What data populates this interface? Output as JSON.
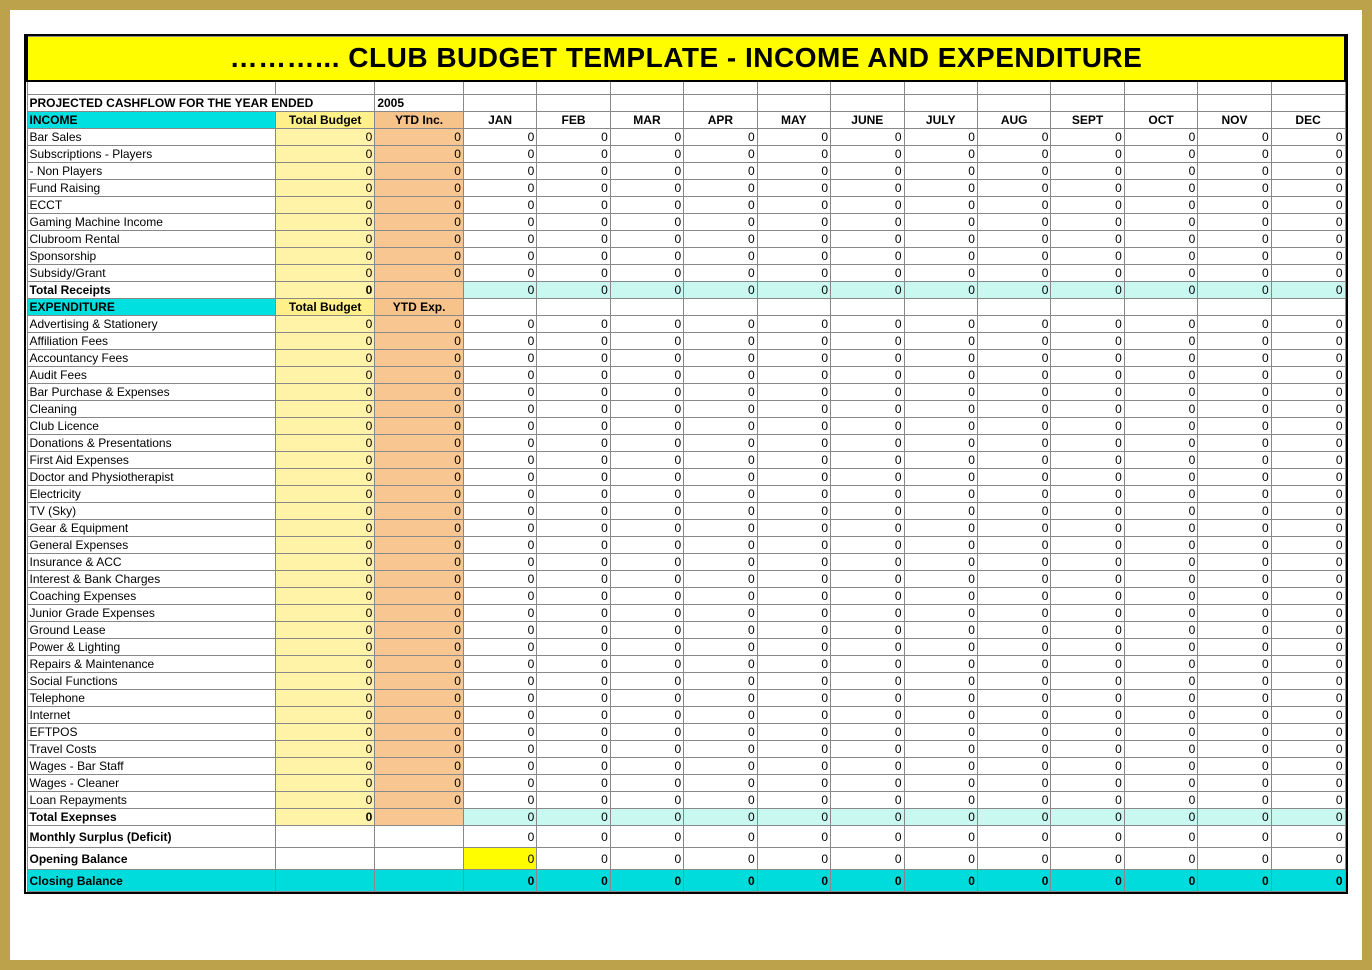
{
  "title": "………...  CLUB BUDGET TEMPLATE - INCOME AND EXPENDITURE",
  "projected_label": "PROJECTED CASHFLOW FOR THE YEAR ENDED",
  "projected_year": "2005",
  "headers": {
    "income": "INCOME",
    "expenditure": "EXPENDITURE",
    "total_budget": "Total Budget",
    "ytd_inc": "YTD Inc.",
    "ytd_exp": "YTD Exp.",
    "months": [
      "JAN",
      "FEB",
      "MAR",
      "APR",
      "MAY",
      "JUNE",
      "JULY",
      "AUG",
      "SEPT",
      "OCT",
      "NOV",
      "DEC"
    ]
  },
  "colors": {
    "outer_border": "#bca24a",
    "title_bg": "#fffd00",
    "section_bg": "#00e0e0",
    "tb_bg": "#fff3a8",
    "tb_hdr_bg": "#fff08a",
    "ytd_bg": "#f8c690",
    "ytd_hdr_bg": "#f6c38a",
    "total_month_bg": "#c8f8f0",
    "closing_bg": "#00dcdc",
    "opening_jan_bg": "#fffd00",
    "grid": "#888888",
    "strong_border": "#000000"
  },
  "income_rows": [
    {
      "label": "Bar Sales",
      "tb": 0,
      "ytd": 0,
      "m": [
        0,
        0,
        0,
        0,
        0,
        0,
        0,
        0,
        0,
        0,
        0,
        0
      ]
    },
    {
      "label": "Subscriptions - Players",
      "tb": 0,
      "ytd": 0,
      "m": [
        0,
        0,
        0,
        0,
        0,
        0,
        0,
        0,
        0,
        0,
        0,
        0
      ]
    },
    {
      "label": "                - Non Players",
      "tb": 0,
      "ytd": 0,
      "m": [
        0,
        0,
        0,
        0,
        0,
        0,
        0,
        0,
        0,
        0,
        0,
        0
      ]
    },
    {
      "label": "Fund Raising",
      "tb": 0,
      "ytd": 0,
      "m": [
        0,
        0,
        0,
        0,
        0,
        0,
        0,
        0,
        0,
        0,
        0,
        0
      ]
    },
    {
      "label": "ECCT",
      "tb": 0,
      "ytd": 0,
      "m": [
        0,
        0,
        0,
        0,
        0,
        0,
        0,
        0,
        0,
        0,
        0,
        0
      ]
    },
    {
      "label": "Gaming Machine Income",
      "tb": 0,
      "ytd": 0,
      "m": [
        0,
        0,
        0,
        0,
        0,
        0,
        0,
        0,
        0,
        0,
        0,
        0
      ]
    },
    {
      "label": "Clubroom Rental",
      "tb": 0,
      "ytd": 0,
      "m": [
        0,
        0,
        0,
        0,
        0,
        0,
        0,
        0,
        0,
        0,
        0,
        0
      ]
    },
    {
      "label": "Sponsorship",
      "tb": 0,
      "ytd": 0,
      "m": [
        0,
        0,
        0,
        0,
        0,
        0,
        0,
        0,
        0,
        0,
        0,
        0
      ]
    },
    {
      "label": "Subsidy/Grant",
      "tb": 0,
      "ytd": 0,
      "m": [
        0,
        0,
        0,
        0,
        0,
        0,
        0,
        0,
        0,
        0,
        0,
        0
      ]
    }
  ],
  "income_total": {
    "label": "Total Receipts",
    "tb": 0,
    "ytd": "",
    "m": [
      0,
      0,
      0,
      0,
      0,
      0,
      0,
      0,
      0,
      0,
      0,
      0
    ]
  },
  "expenditure_rows": [
    {
      "label": "Advertising & Stationery",
      "tb": 0,
      "ytd": 0,
      "m": [
        0,
        0,
        0,
        0,
        0,
        0,
        0,
        0,
        0,
        0,
        0,
        0
      ]
    },
    {
      "label": "Affiliation Fees",
      "tb": 0,
      "ytd": 0,
      "m": [
        0,
        0,
        0,
        0,
        0,
        0,
        0,
        0,
        0,
        0,
        0,
        0
      ]
    },
    {
      "label": "Accountancy Fees",
      "tb": 0,
      "ytd": 0,
      "m": [
        0,
        0,
        0,
        0,
        0,
        0,
        0,
        0,
        0,
        0,
        0,
        0
      ]
    },
    {
      "label": "Audit Fees",
      "tb": 0,
      "ytd": 0,
      "m": [
        0,
        0,
        0,
        0,
        0,
        0,
        0,
        0,
        0,
        0,
        0,
        0
      ]
    },
    {
      "label": "Bar Purchase & Expenses",
      "tb": 0,
      "ytd": 0,
      "m": [
        0,
        0,
        0,
        0,
        0,
        0,
        0,
        0,
        0,
        0,
        0,
        0
      ]
    },
    {
      "label": "Cleaning",
      "tb": 0,
      "ytd": 0,
      "m": [
        0,
        0,
        0,
        0,
        0,
        0,
        0,
        0,
        0,
        0,
        0,
        0
      ]
    },
    {
      "label": "Club Licence",
      "tb": 0,
      "ytd": 0,
      "m": [
        0,
        0,
        0,
        0,
        0,
        0,
        0,
        0,
        0,
        0,
        0,
        0
      ]
    },
    {
      "label": "Donations & Presentations",
      "tb": 0,
      "ytd": 0,
      "m": [
        0,
        0,
        0,
        0,
        0,
        0,
        0,
        0,
        0,
        0,
        0,
        0
      ]
    },
    {
      "label": "First Aid Expenses",
      "tb": 0,
      "ytd": 0,
      "m": [
        0,
        0,
        0,
        0,
        0,
        0,
        0,
        0,
        0,
        0,
        0,
        0
      ]
    },
    {
      "label": "Doctor and Physiotherapist",
      "tb": 0,
      "ytd": 0,
      "m": [
        0,
        0,
        0,
        0,
        0,
        0,
        0,
        0,
        0,
        0,
        0,
        0
      ]
    },
    {
      "label": "Electricity",
      "tb": 0,
      "ytd": 0,
      "m": [
        0,
        0,
        0,
        0,
        0,
        0,
        0,
        0,
        0,
        0,
        0,
        0
      ]
    },
    {
      "label": "TV (Sky)",
      "tb": 0,
      "ytd": 0,
      "m": [
        0,
        0,
        0,
        0,
        0,
        0,
        0,
        0,
        0,
        0,
        0,
        0
      ]
    },
    {
      "label": "Gear & Equipment",
      "tb": 0,
      "ytd": 0,
      "m": [
        0,
        0,
        0,
        0,
        0,
        0,
        0,
        0,
        0,
        0,
        0,
        0
      ]
    },
    {
      "label": "General Expenses",
      "tb": 0,
      "ytd": 0,
      "m": [
        0,
        0,
        0,
        0,
        0,
        0,
        0,
        0,
        0,
        0,
        0,
        0
      ]
    },
    {
      "label": "Insurance & ACC",
      "tb": 0,
      "ytd": 0,
      "m": [
        0,
        0,
        0,
        0,
        0,
        0,
        0,
        0,
        0,
        0,
        0,
        0
      ]
    },
    {
      "label": "Interest & Bank Charges",
      "tb": 0,
      "ytd": 0,
      "m": [
        0,
        0,
        0,
        0,
        0,
        0,
        0,
        0,
        0,
        0,
        0,
        0
      ]
    },
    {
      "label": "Coaching Expenses",
      "tb": 0,
      "ytd": 0,
      "m": [
        0,
        0,
        0,
        0,
        0,
        0,
        0,
        0,
        0,
        0,
        0,
        0
      ]
    },
    {
      "label": "Junior Grade Expenses",
      "tb": 0,
      "ytd": 0,
      "m": [
        0,
        0,
        0,
        0,
        0,
        0,
        0,
        0,
        0,
        0,
        0,
        0
      ]
    },
    {
      "label": "Ground Lease",
      "tb": 0,
      "ytd": 0,
      "m": [
        0,
        0,
        0,
        0,
        0,
        0,
        0,
        0,
        0,
        0,
        0,
        0
      ]
    },
    {
      "label": "Power & Lighting",
      "tb": 0,
      "ytd": 0,
      "m": [
        0,
        0,
        0,
        0,
        0,
        0,
        0,
        0,
        0,
        0,
        0,
        0
      ]
    },
    {
      "label": "Repairs & Maintenance",
      "tb": 0,
      "ytd": 0,
      "m": [
        0,
        0,
        0,
        0,
        0,
        0,
        0,
        0,
        0,
        0,
        0,
        0
      ]
    },
    {
      "label": "Social Functions",
      "tb": 0,
      "ytd": 0,
      "m": [
        0,
        0,
        0,
        0,
        0,
        0,
        0,
        0,
        0,
        0,
        0,
        0
      ]
    },
    {
      "label": "Telephone",
      "tb": 0,
      "ytd": 0,
      "m": [
        0,
        0,
        0,
        0,
        0,
        0,
        0,
        0,
        0,
        0,
        0,
        0
      ]
    },
    {
      "label": "Internet",
      "tb": 0,
      "ytd": 0,
      "m": [
        0,
        0,
        0,
        0,
        0,
        0,
        0,
        0,
        0,
        0,
        0,
        0
      ]
    },
    {
      "label": "EFTPOS",
      "tb": 0,
      "ytd": 0,
      "m": [
        0,
        0,
        0,
        0,
        0,
        0,
        0,
        0,
        0,
        0,
        0,
        0
      ]
    },
    {
      "label": "Travel Costs",
      "tb": 0,
      "ytd": 0,
      "m": [
        0,
        0,
        0,
        0,
        0,
        0,
        0,
        0,
        0,
        0,
        0,
        0
      ]
    },
    {
      "label": "Wages - Bar Staff",
      "tb": 0,
      "ytd": 0,
      "m": [
        0,
        0,
        0,
        0,
        0,
        0,
        0,
        0,
        0,
        0,
        0,
        0
      ]
    },
    {
      "label": "Wages - Cleaner",
      "tb": 0,
      "ytd": 0,
      "m": [
        0,
        0,
        0,
        0,
        0,
        0,
        0,
        0,
        0,
        0,
        0,
        0
      ]
    },
    {
      "label": "Loan Repayments",
      "tb": 0,
      "ytd": 0,
      "m": [
        0,
        0,
        0,
        0,
        0,
        0,
        0,
        0,
        0,
        0,
        0,
        0
      ]
    }
  ],
  "expenditure_total": {
    "label": "Total  Exepnses",
    "tb": 0,
    "ytd": "",
    "m": [
      0,
      0,
      0,
      0,
      0,
      0,
      0,
      0,
      0,
      0,
      0,
      0
    ]
  },
  "surplus": {
    "label": "Monthly Surplus (Deficit)",
    "m": [
      0,
      0,
      0,
      0,
      0,
      0,
      0,
      0,
      0,
      0,
      0,
      0
    ]
  },
  "opening": {
    "label": "Opening Balance",
    "m": [
      0,
      0,
      0,
      0,
      0,
      0,
      0,
      0,
      0,
      0,
      0,
      0
    ]
  },
  "closing": {
    "label": "Closing Balance",
    "m": [
      0,
      0,
      0,
      0,
      0,
      0,
      0,
      0,
      0,
      0,
      0,
      0
    ]
  }
}
